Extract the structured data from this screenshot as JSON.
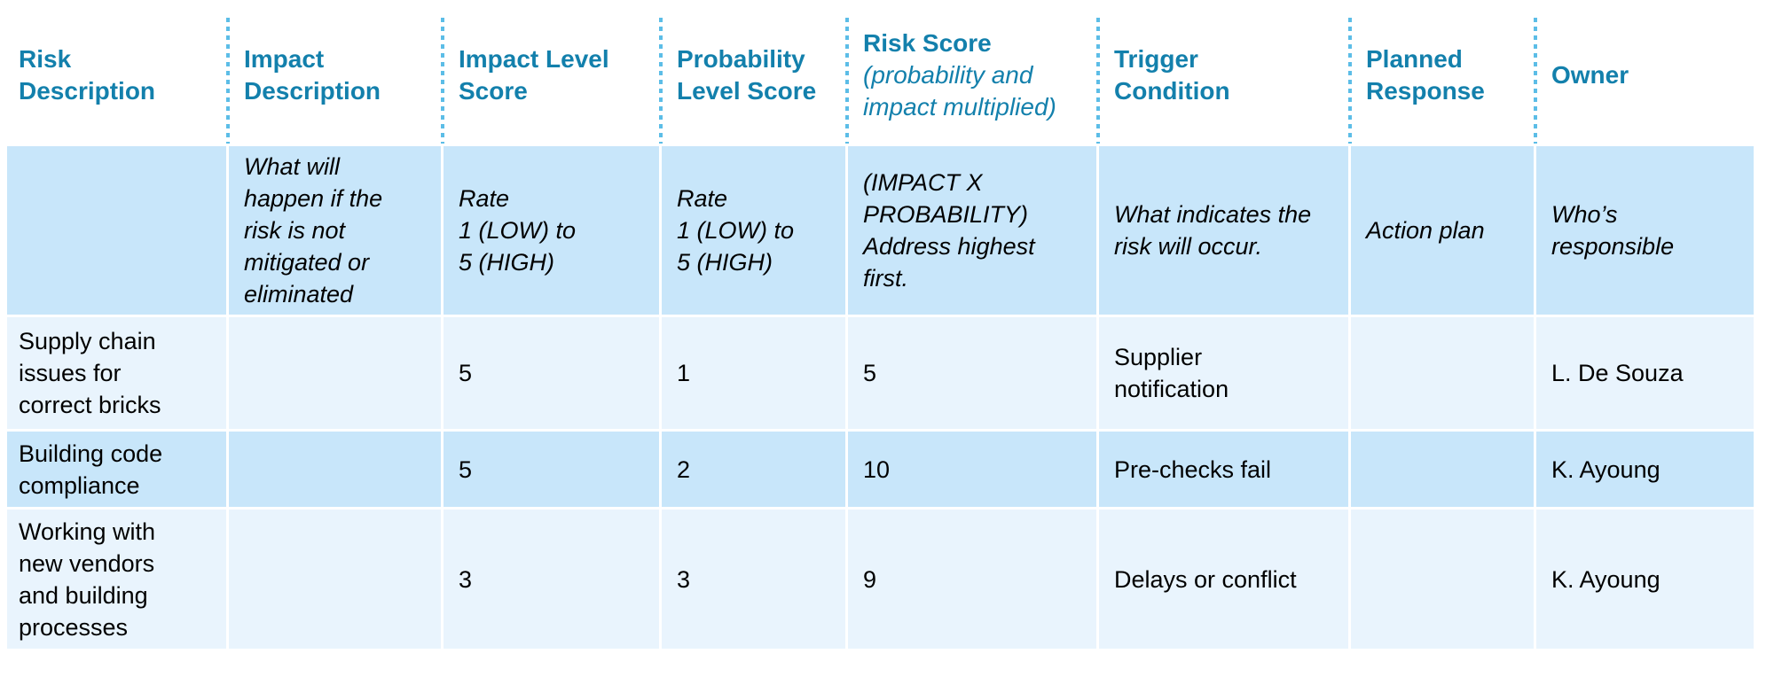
{
  "theme": {
    "header_text_color": "#1380AC",
    "dotted_divider_color": "#5CBDE7",
    "row_blue_medium": "#C8E6FA",
    "row_blue_light": "#E9F4FD",
    "body_text_color": "#000000"
  },
  "header": {
    "cells": [
      {
        "title": "Risk\nDescription",
        "subtitle": ""
      },
      {
        "title": "Impact\nDescription",
        "subtitle": ""
      },
      {
        "title": "Impact Level\nScore",
        "subtitle": ""
      },
      {
        "title": "Probability\nLevel Score",
        "subtitle": ""
      },
      {
        "title": "Risk Score",
        "subtitle": "(probability and\nimpact multiplied)"
      },
      {
        "title": "Trigger\nCondition",
        "subtitle": ""
      },
      {
        "title": "Planned\nResponse",
        "subtitle": ""
      },
      {
        "title": "Owner",
        "subtitle": ""
      }
    ]
  },
  "guidance_row": [
    "",
    "What will\nhappen if the\nrisk is not\nmitigated or\neliminated",
    "Rate\n1 (LOW) to\n5 (HIGH)",
    "Rate\n1 (LOW) to\n5 (HIGH)",
    "(IMPACT X\nPROBABILITY)\nAddress highest\nfirst.",
    "What indicates the\nrisk will occur.",
    "Action plan",
    "Who’s\nresponsible"
  ],
  "rows": [
    {
      "risk_description": "Supply chain\nissues for\ncorrect bricks",
      "impact_description": "",
      "impact_level_score": "5",
      "probability_level_score": "1",
      "risk_score": "5",
      "trigger_condition": "Supplier\nnotification",
      "planned_response": "",
      "owner": "L. De Souza"
    },
    {
      "risk_description": "Building code\ncompliance",
      "impact_description": "",
      "impact_level_score": "5",
      "probability_level_score": "2",
      "risk_score": "10",
      "trigger_condition": "Pre-checks fail",
      "planned_response": "",
      "owner": "K. Ayoung"
    },
    {
      "risk_description": "Working with\nnew vendors\nand building\nprocesses",
      "impact_description": "",
      "impact_level_score": "3",
      "probability_level_score": "3",
      "risk_score": "9",
      "trigger_condition": "Delays or conflict",
      "planned_response": "",
      "owner": "K. Ayoung"
    }
  ]
}
